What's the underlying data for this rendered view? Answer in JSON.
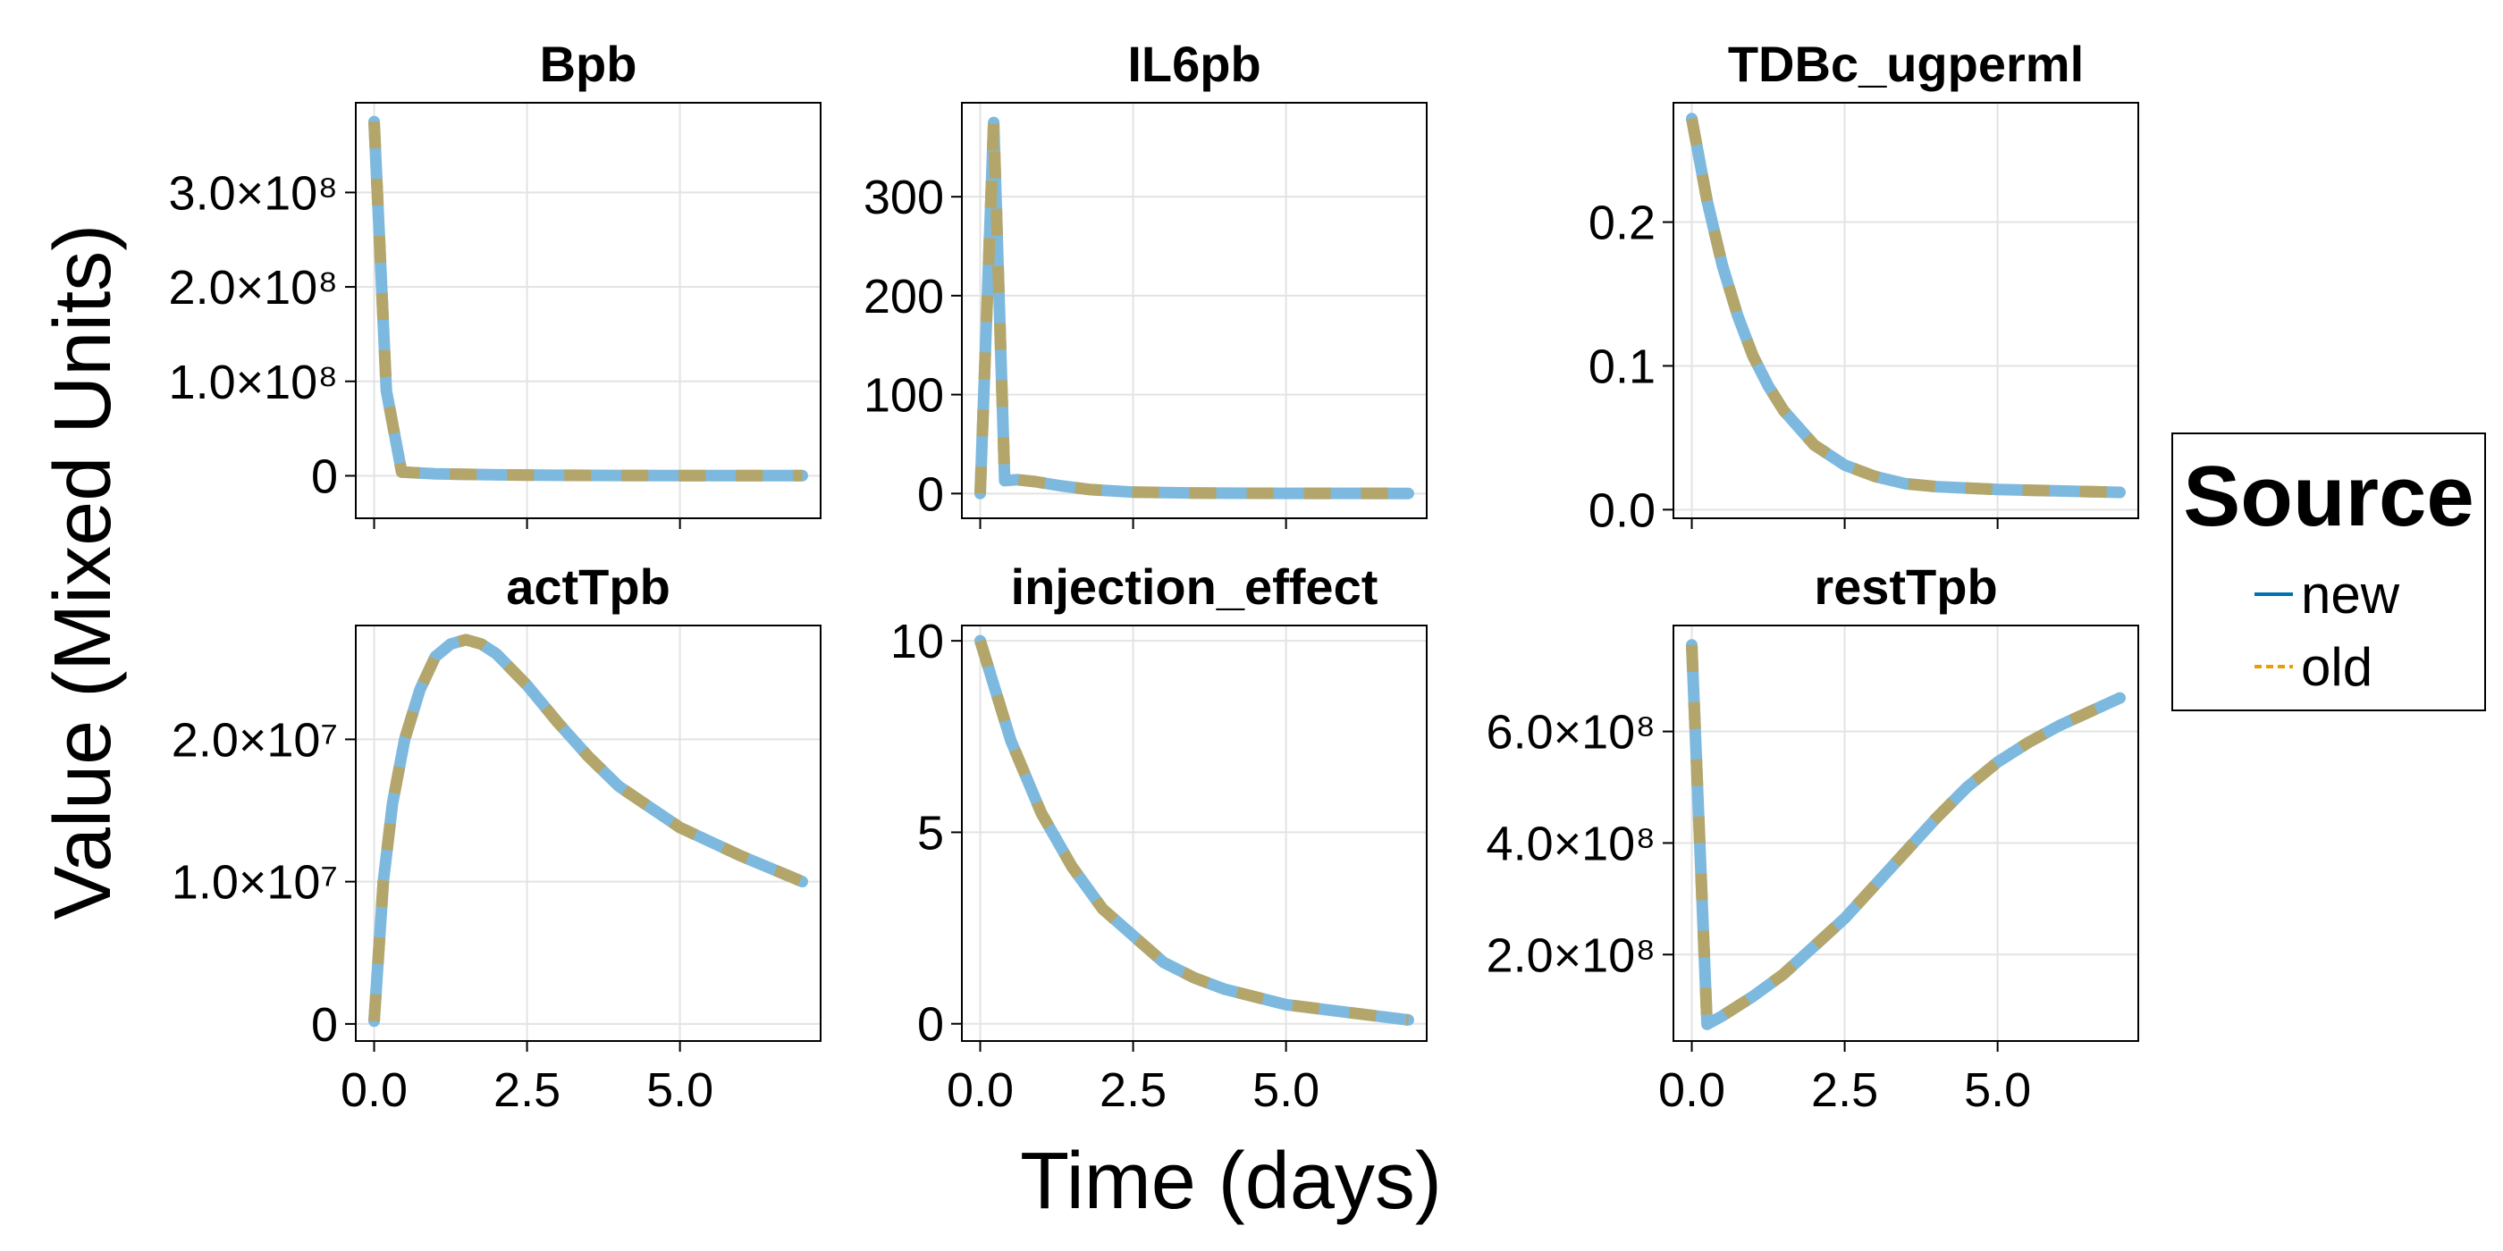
{
  "chart_data": {
    "type": "line",
    "xlabel": "Time (days)",
    "ylabel": "Value (Mixed Units)",
    "colors": {
      "new": "#0072b2",
      "old": "#e69f00",
      "new_rendered": "#7db9de",
      "old_rendered": "#b4a66a"
    },
    "legend": {
      "title": "Source",
      "placement": "right",
      "entries": [
        {
          "label": "new",
          "color": "#0072b2",
          "style": "solid"
        },
        {
          "label": "old",
          "color": "#e69f00",
          "style": "dashed"
        }
      ]
    },
    "grid": true,
    "panels": [
      {
        "title": "Bpb",
        "xlim": [
          -0.3,
          7.3
        ],
        "ylim": [
          -45000000.0,
          395000000.0
        ],
        "xticks": [
          0,
          2.5,
          5
        ],
        "xtick_labels": [
          "0.0",
          "2.5",
          "5.0"
        ],
        "show_xticks": false,
        "yticks": [
          0,
          100000000.0,
          200000000.0,
          300000000.0
        ],
        "ytick_labels": [
          "0",
          "1.0×10⁸",
          "2.0×10⁸",
          "3.0×10⁸"
        ],
        "x": [
          0,
          0.2,
          0.45,
          1,
          2,
          3,
          4,
          5,
          6,
          7
        ],
        "y": [
          375000000.0,
          90000000.0,
          4000000.0,
          2000000.0,
          1000000.0,
          500000.0,
          300000.0,
          200000.0,
          100000.0,
          100000.0
        ]
      },
      {
        "title": "IL6pb",
        "xlim": [
          -0.3,
          7.3
        ],
        "ylim": [
          -25,
          395
        ],
        "xticks": [
          0,
          2.5,
          5
        ],
        "xtick_labels": [
          "0.0",
          "2.5",
          "5.0"
        ],
        "show_xticks": false,
        "yticks": [
          0,
          100,
          200,
          300
        ],
        "ytick_labels": [
          "0",
          "100",
          "200",
          "300"
        ],
        "x": [
          0,
          0.22,
          0.4,
          0.6,
          0.9,
          1.3,
          1.8,
          2.5,
          3.5,
          5,
          7
        ],
        "y": [
          0,
          375,
          13,
          14,
          12,
          8,
          4,
          1.5,
          0.5,
          0.2,
          0.1
        ]
      },
      {
        "title": "TDBc_ugperml",
        "xlim": [
          -0.3,
          7.3
        ],
        "ylim": [
          -0.006,
          0.283
        ],
        "xticks": [
          0,
          2.5,
          5
        ],
        "xtick_labels": [
          "0.0",
          "2.5",
          "5.0"
        ],
        "show_xticks": false,
        "yticks": [
          0,
          0.1,
          0.2
        ],
        "ytick_labels": [
          "0.0",
          "0.1",
          "0.2"
        ],
        "x": [
          0,
          0.25,
          0.5,
          0.75,
          1,
          1.25,
          1.5,
          2,
          2.5,
          3,
          3.5,
          4,
          5,
          6,
          7
        ],
        "y": [
          0.272,
          0.215,
          0.17,
          0.135,
          0.107,
          0.086,
          0.069,
          0.045,
          0.031,
          0.023,
          0.018,
          0.016,
          0.014,
          0.013,
          0.012
        ]
      },
      {
        "title": "actTpb",
        "xlim": [
          -0.3,
          7.3
        ],
        "ylim": [
          -1200000.0,
          28000000.0
        ],
        "xticks": [
          0,
          2.5,
          5
        ],
        "xtick_labels": [
          "0.0",
          "2.5",
          "5.0"
        ],
        "show_xticks": true,
        "yticks": [
          0,
          10000000.0,
          20000000.0
        ],
        "ytick_labels": [
          "0",
          "1.0×10⁷",
          "2.0×10⁷"
        ],
        "x": [
          0,
          0.15,
          0.3,
          0.5,
          0.75,
          1,
          1.25,
          1.5,
          1.75,
          2,
          2.5,
          3,
          3.5,
          4,
          5,
          6,
          7
        ],
        "y": [
          200000.0,
          10000000.0,
          15500000.0,
          20000000.0,
          23500000.0,
          25800000.0,
          26700000.0,
          27000000.0,
          26700000.0,
          26000000.0,
          23800000.0,
          21200000.0,
          18800000.0,
          16700000.0,
          13800000.0,
          11800000.0,
          10000000.0
        ]
      },
      {
        "title": "injection_effect",
        "xlim": [
          -0.3,
          7.3
        ],
        "ylim": [
          -0.45,
          10.4
        ],
        "xticks": [
          0,
          2.5,
          5
        ],
        "xtick_labels": [
          "0.0",
          "2.5",
          "5.0"
        ],
        "show_xticks": true,
        "yticks": [
          0,
          5,
          10
        ],
        "ytick_labels": [
          "0",
          "5",
          "10"
        ],
        "x": [
          0,
          0.5,
          1,
          1.5,
          2,
          2.5,
          3,
          3.5,
          4,
          5,
          6,
          7
        ],
        "y": [
          10,
          7.4,
          5.5,
          4.1,
          3.0,
          2.3,
          1.6,
          1.2,
          0.9,
          0.5,
          0.3,
          0.1
        ]
      },
      {
        "title": "restTpb",
        "xlim": [
          -0.3,
          7.3
        ],
        "ylim": [
          45000000.0,
          790000000.0
        ],
        "xticks": [
          0,
          2.5,
          5
        ],
        "xtick_labels": [
          "0.0",
          "2.5",
          "5.0"
        ],
        "show_xticks": true,
        "yticks": [
          200000000.0,
          400000000.0,
          600000000.0
        ],
        "ytick_labels": [
          "2.0×10⁸",
          "4.0×10⁸",
          "6.0×10⁸"
        ],
        "x": [
          0,
          0.25,
          0.5,
          1,
          1.5,
          2,
          2.5,
          3,
          3.5,
          4,
          4.5,
          5,
          5.5,
          6,
          6.5,
          7
        ],
        "y": [
          755000000.0,
          75000000.0,
          90000000.0,
          125000000.0,
          165000000.0,
          215000000.0,
          265000000.0,
          325000000.0,
          385000000.0,
          445000000.0,
          500000000.0,
          545000000.0,
          580000000.0,
          610000000.0,
          635000000.0,
          660000000.0
        ]
      }
    ]
  }
}
